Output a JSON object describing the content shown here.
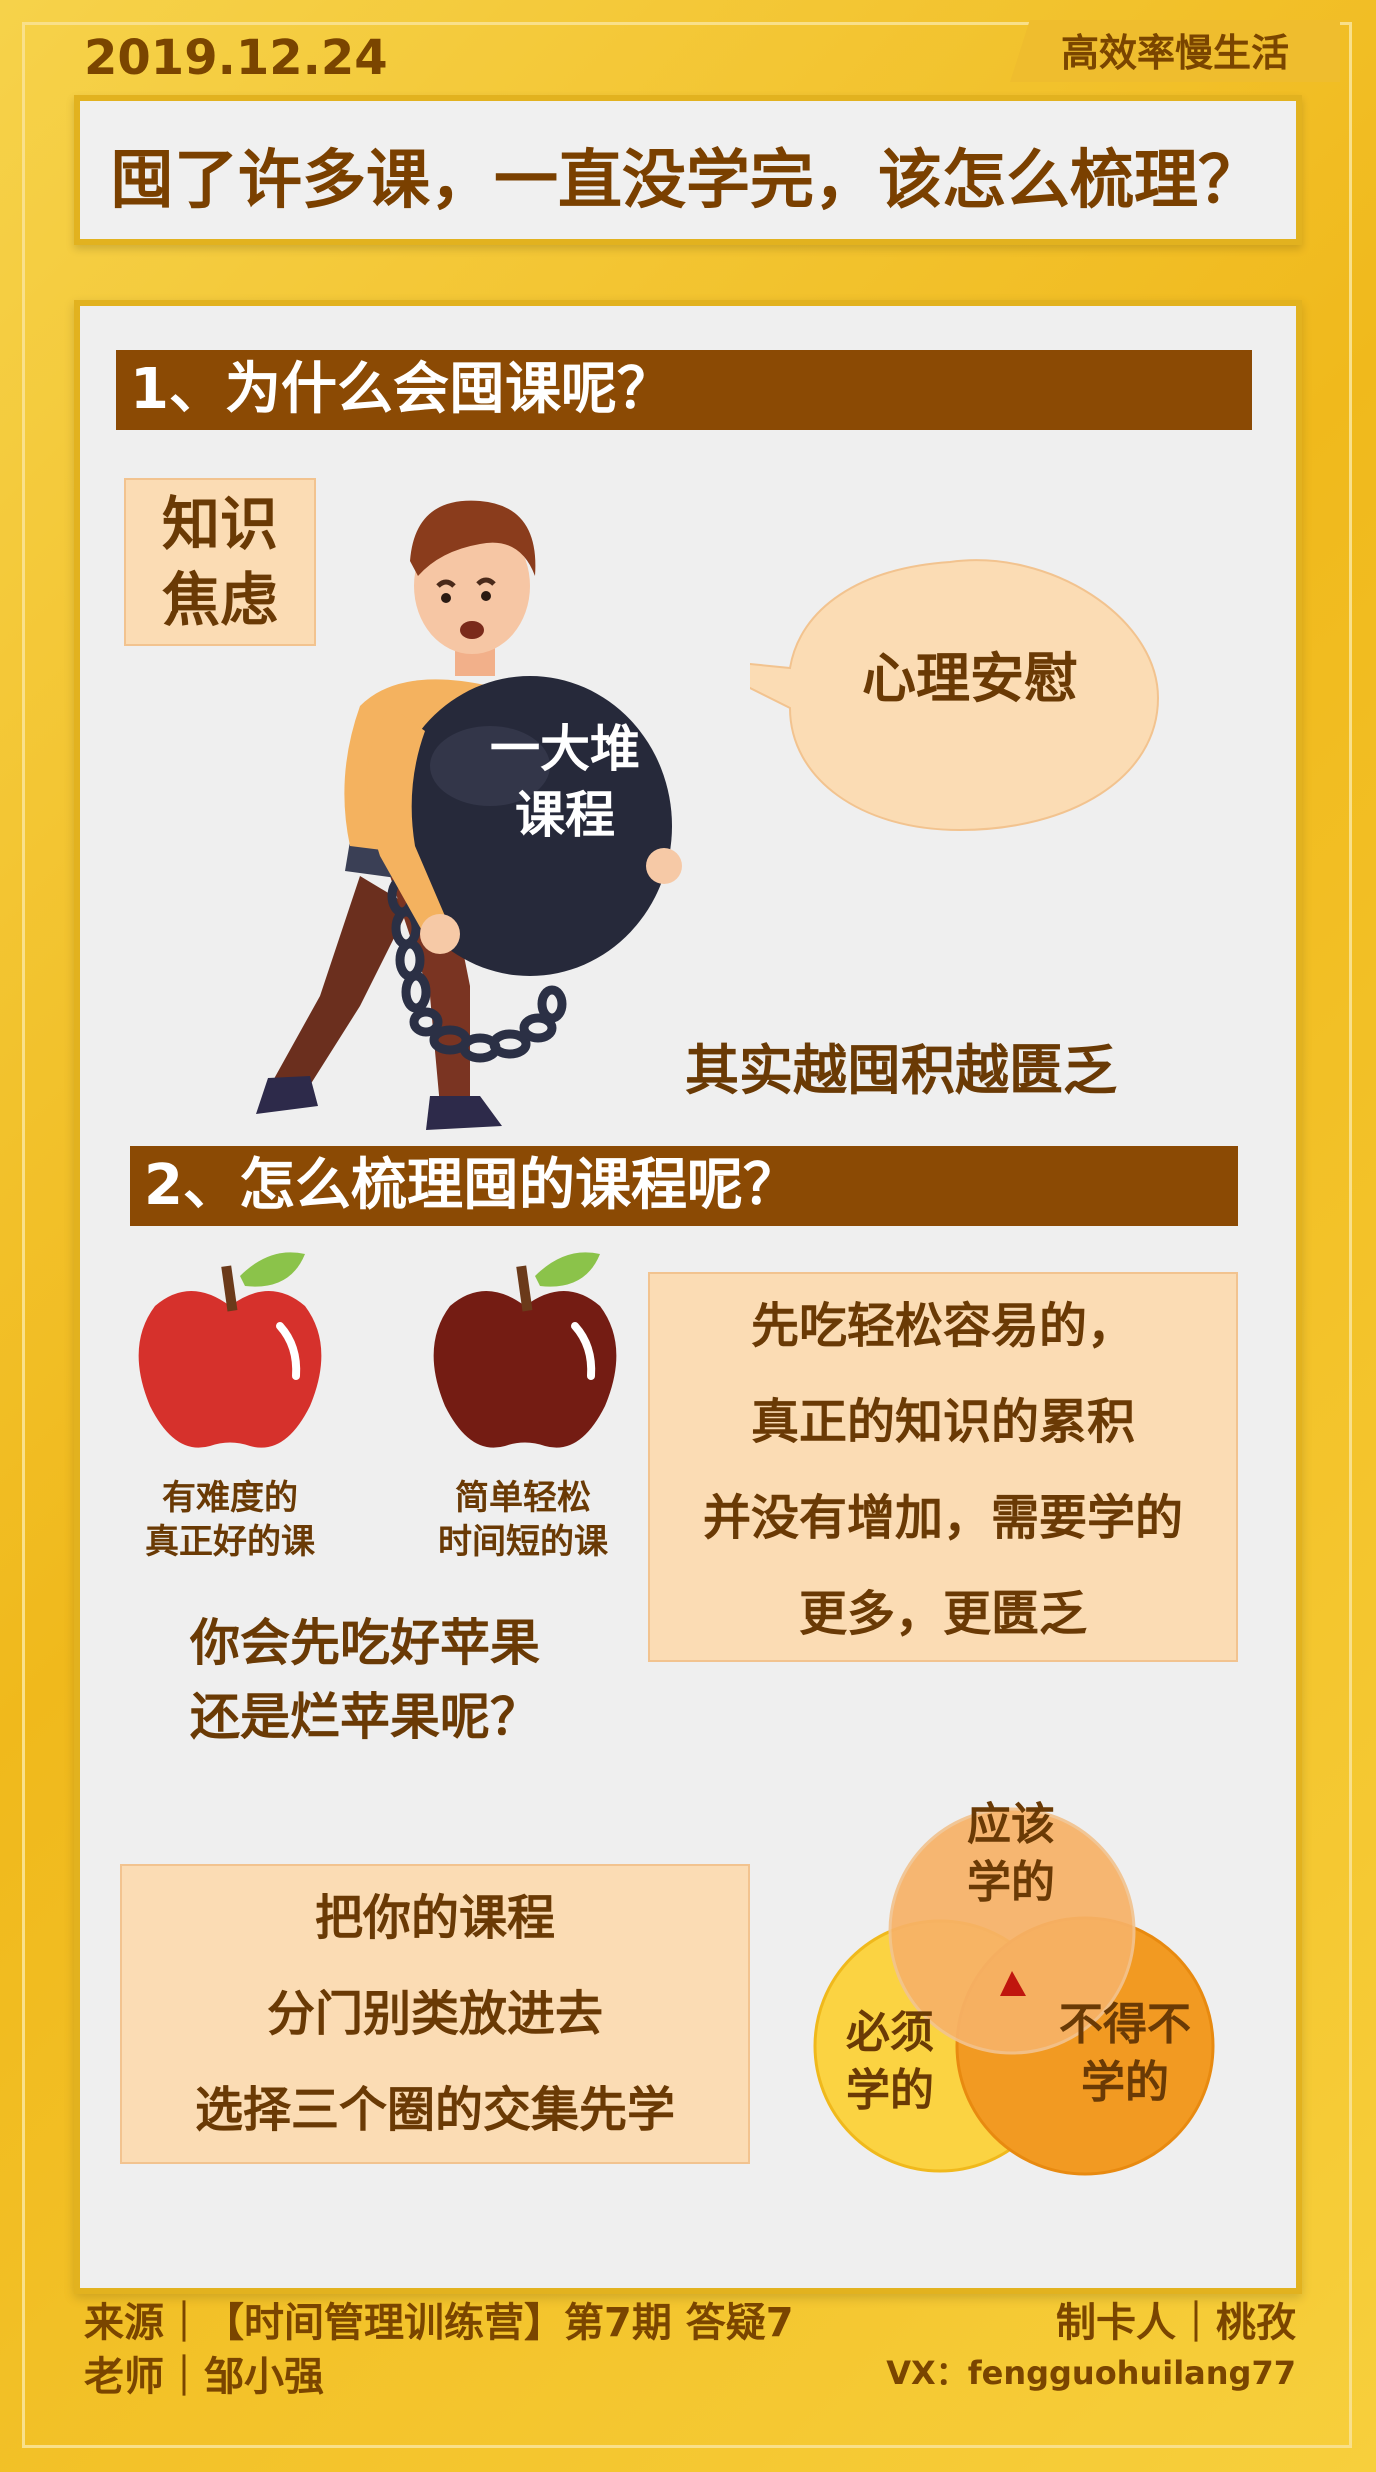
{
  "header": {
    "date": "2019.12.24",
    "brand": "高效率慢生活",
    "title": "囤了许多课，一直没学完，该怎么梳理？"
  },
  "section1": {
    "heading": "1、为什么会囤课呢？",
    "tag_line1": "知识",
    "tag_line2": "焦虑",
    "ball_line1": "一大堆",
    "ball_line2": "课程",
    "bubble": "心理安慰",
    "conclusion": "其实越囤积越匮乏"
  },
  "section2": {
    "heading": "2、怎么梳理囤的课程呢？",
    "apple_good_line1": "有难度的",
    "apple_good_line2": "真正好的课",
    "apple_bad_line1": "简单轻松",
    "apple_bad_line2": "时间短的课",
    "question_line1": "你会先吃好苹果",
    "question_line2": "还是烂苹果呢？",
    "tip1_lines": [
      "先吃轻松容易的，",
      "真正的知识的累积",
      "并没有增加，需要学的",
      "更多，更匮乏"
    ],
    "tip2_lines": [
      "把你的课程",
      "分门别类放进去",
      "选择三个圈的交集先学"
    ],
    "venn_top_line1": "应该",
    "venn_top_line2": "学的",
    "venn_left_line1": "必须",
    "venn_left_line2": "学的",
    "venn_right_line1": "不得不",
    "venn_right_line2": "学的"
  },
  "footer": {
    "source_line1": "来源｜【时间管理训练营】第7期 答疑7",
    "source_line2": "老师｜邹小强",
    "maker": "制卡人｜桃孜",
    "vx": "VX：fengguohuilang77"
  },
  "colors": {
    "background": "#f0b91c",
    "heading_bar": "#8b4a04",
    "panel": "#efefef",
    "tag_fill": "#fbdcb4",
    "venn_top": "#f7b267",
    "venn_left": "#fbd342",
    "venn_right": "#f29a22",
    "apple_good": "#d6312c",
    "apple_bad": "#741c13"
  }
}
